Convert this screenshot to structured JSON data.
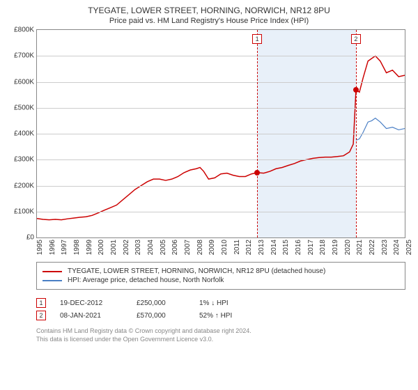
{
  "title": "TYEGATE, LOWER STREET, HORNING, NORWICH, NR12 8PU",
  "subtitle": "Price paid vs. HM Land Registry's House Price Index (HPI)",
  "chart": {
    "type": "line",
    "ylim": [
      0,
      800000
    ],
    "ytick_step": 100000,
    "yticks": [
      "£0",
      "£100K",
      "£200K",
      "£300K",
      "£400K",
      "£500K",
      "£600K",
      "£700K",
      "£800K"
    ],
    "xlim": [
      1995,
      2025
    ],
    "xticks": [
      "1995",
      "1996",
      "1997",
      "1998",
      "1999",
      "2000",
      "2001",
      "2002",
      "2003",
      "2004",
      "2005",
      "2006",
      "2007",
      "2008",
      "2009",
      "2010",
      "2011",
      "2012",
      "2013",
      "2014",
      "2015",
      "2016",
      "2017",
      "2018",
      "2019",
      "2020",
      "2021",
      "2022",
      "2023",
      "2024",
      "2025"
    ],
    "grid_color": "#cccccc",
    "border_color": "#888888",
    "background_color": "#ffffff",
    "tick_fontsize": 10,
    "title_fontsize": 12,
    "subtitle_fontsize": 11,
    "shaded_region": {
      "start_year": 2012.96,
      "end_year": 2021.02,
      "color": "#e8f0f9"
    },
    "series": [
      {
        "name": "property",
        "label": "TYEGATE, LOWER STREET, HORNING, NORWICH, NR12 8PU (detached house)",
        "color": "#cc0000",
        "line_width": 1.5,
        "points": [
          [
            1995.0,
            73000
          ],
          [
            1995.5,
            70000
          ],
          [
            1996.0,
            68000
          ],
          [
            1996.5,
            70000
          ],
          [
            1997.0,
            68000
          ],
          [
            1997.5,
            72000
          ],
          [
            1998.0,
            75000
          ],
          [
            1998.5,
            78000
          ],
          [
            1999.0,
            80000
          ],
          [
            1999.5,
            85000
          ],
          [
            2000.0,
            95000
          ],
          [
            2000.5,
            105000
          ],
          [
            2001.0,
            115000
          ],
          [
            2001.5,
            125000
          ],
          [
            2002.0,
            145000
          ],
          [
            2002.5,
            165000
          ],
          [
            2003.0,
            185000
          ],
          [
            2003.5,
            200000
          ],
          [
            2004.0,
            215000
          ],
          [
            2004.5,
            225000
          ],
          [
            2005.0,
            225000
          ],
          [
            2005.5,
            220000
          ],
          [
            2006.0,
            225000
          ],
          [
            2006.5,
            235000
          ],
          [
            2007.0,
            250000
          ],
          [
            2007.5,
            260000
          ],
          [
            2008.0,
            265000
          ],
          [
            2008.3,
            270000
          ],
          [
            2008.6,
            255000
          ],
          [
            2009.0,
            225000
          ],
          [
            2009.5,
            230000
          ],
          [
            2010.0,
            245000
          ],
          [
            2010.5,
            248000
          ],
          [
            2011.0,
            240000
          ],
          [
            2011.5,
            235000
          ],
          [
            2012.0,
            235000
          ],
          [
            2012.5,
            245000
          ],
          [
            2012.96,
            250000
          ],
          [
            2013.5,
            248000
          ],
          [
            2014.0,
            255000
          ],
          [
            2014.5,
            265000
          ],
          [
            2015.0,
            270000
          ],
          [
            2015.5,
            278000
          ],
          [
            2016.0,
            285000
          ],
          [
            2016.5,
            295000
          ],
          [
            2017.0,
            300000
          ],
          [
            2017.5,
            305000
          ],
          [
            2018.0,
            308000
          ],
          [
            2018.5,
            310000
          ],
          [
            2019.0,
            310000
          ],
          [
            2019.5,
            312000
          ],
          [
            2020.0,
            315000
          ],
          [
            2020.5,
            330000
          ],
          [
            2020.8,
            360000
          ],
          [
            2021.02,
            570000
          ],
          [
            2021.3,
            560000
          ],
          [
            2021.6,
            615000
          ],
          [
            2022.0,
            680000
          ],
          [
            2022.3,
            690000
          ],
          [
            2022.6,
            700000
          ],
          [
            2023.0,
            680000
          ],
          [
            2023.5,
            635000
          ],
          [
            2024.0,
            645000
          ],
          [
            2024.5,
            620000
          ],
          [
            2025.0,
            625000
          ]
        ]
      },
      {
        "name": "hpi",
        "label": "HPI: Average price, detached house, North Norfolk",
        "color": "#4a7fc5",
        "line_width": 1.2,
        "points": [
          [
            2021.02,
            375000
          ],
          [
            2021.3,
            380000
          ],
          [
            2021.6,
            405000
          ],
          [
            2022.0,
            445000
          ],
          [
            2022.3,
            450000
          ],
          [
            2022.6,
            460000
          ],
          [
            2023.0,
            445000
          ],
          [
            2023.5,
            420000
          ],
          [
            2024.0,
            425000
          ],
          [
            2024.5,
            415000
          ],
          [
            2025.0,
            420000
          ]
        ]
      }
    ],
    "markers": [
      {
        "id": "1",
        "year": 2012.96,
        "value": 250000
      },
      {
        "id": "2",
        "year": 2021.02,
        "value": 570000
      }
    ],
    "marker_line_color": "#cc0000",
    "marker_box_border": "#cc0000",
    "marker_dot_color": "#cc0000"
  },
  "legend": {
    "border_color": "#888888",
    "fontsize": 10,
    "items": [
      {
        "color": "#cc0000",
        "label": "TYEGATE, LOWER STREET, HORNING, NORWICH, NR12 8PU (detached house)"
      },
      {
        "color": "#4a7fc5",
        "label": "HPI: Average price, detached house, North Norfolk"
      }
    ]
  },
  "sales": [
    {
      "id": "1",
      "date": "19-DEC-2012",
      "price": "£250,000",
      "diff": "1% ↓ HPI"
    },
    {
      "id": "2",
      "date": "08-JAN-2021",
      "price": "£570,000",
      "diff": "52% ↑ HPI"
    }
  ],
  "footer": {
    "line1": "Contains HM Land Registry data © Crown copyright and database right 2024.",
    "line2": "This data is licensed under the Open Government Licence v3.0."
  }
}
